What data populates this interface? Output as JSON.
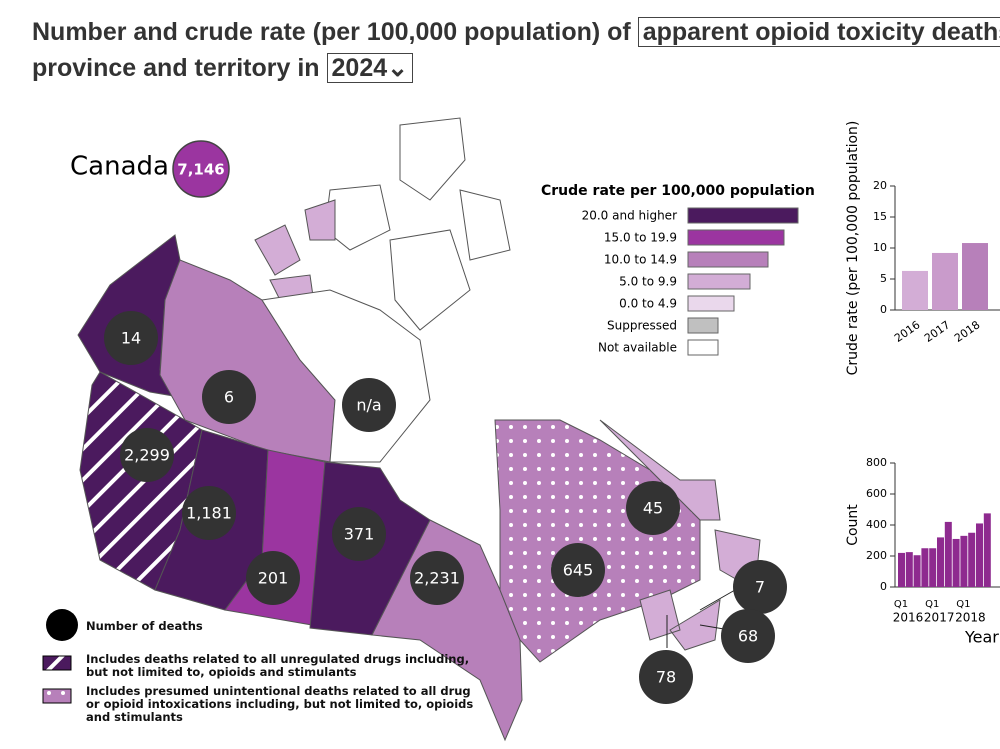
{
  "header": {
    "title_start": "Number and crude rate (per 100,000 population) of",
    "measure": "apparent opioid toxicity deaths",
    "title_end": "province and territory in",
    "year": "2024"
  },
  "canada": {
    "label": "Canada",
    "deaths": "7,146"
  },
  "regions": [
    {
      "deaths": "14"
    },
    {
      "deaths": "6"
    },
    {
      "deaths": "n/a"
    },
    {
      "deaths": "2,299"
    },
    {
      "deaths": "1,181"
    },
    {
      "deaths": "201"
    },
    {
      "deaths": "371"
    },
    {
      "deaths": "2,231"
    },
    {
      "deaths": "645"
    },
    {
      "deaths": "45"
    },
    {
      "deaths": "7"
    },
    {
      "deaths": "68"
    },
    {
      "deaths": "78"
    }
  ],
  "legend": {
    "title": "Crude rate per 100,000 population",
    "items": [
      {
        "label": "20.0 and higher",
        "color": "#4b1a5e"
      },
      {
        "label": "15.0 to 19.9",
        "color": "#9b35a0"
      },
      {
        "label": "10.0 to 14.9",
        "color": "#b780ba"
      },
      {
        "label": "5.0 to 9.9",
        "color": "#d3add6"
      },
      {
        "label": "0.0 to 4.9",
        "color": "#ead8ec"
      },
      {
        "label": "Suppressed",
        "color": "#c0c0c0"
      },
      {
        "label": "Not available",
        "color": "#ffffff"
      }
    ]
  },
  "key": {
    "deaths": "Number of deaths",
    "hatched": "Includes deaths related to all unregulated drugs including, but not limited to, opioids and stimulants",
    "dotted": "Includes presumed unintentional deaths related to all drug or opioid intoxications including, but not limited to, opioids and stimulants"
  },
  "chart_data": [
    {
      "type": "bar",
      "y_label": "Crude rate (per 100,000 population)",
      "categories": [
        "2016",
        "2017",
        "2018"
      ],
      "values": [
        6.3,
        9.2,
        10.8
      ],
      "colors": [
        "#d3add6",
        "#c99bcb",
        "#b780ba"
      ],
      "ylim": [
        0,
        20
      ],
      "yticks": [
        0,
        5,
        10,
        15,
        20
      ]
    },
    {
      "type": "bar",
      "y_label": "Count",
      "x_label": "Year",
      "categories": [
        "Q1",
        null,
        null,
        null,
        "Q1",
        null,
        null,
        null,
        "Q1",
        null,
        null,
        null
      ],
      "groups": [
        "2016",
        "2017",
        "2018"
      ],
      "values": [
        220,
        225,
        205,
        250,
        250,
        320,
        420,
        310,
        330,
        350,
        410,
        475
      ],
      "color": "#8e2a8f",
      "ylim": [
        0,
        800
      ],
      "yticks": [
        0,
        200,
        400,
        600,
        800
      ]
    }
  ]
}
